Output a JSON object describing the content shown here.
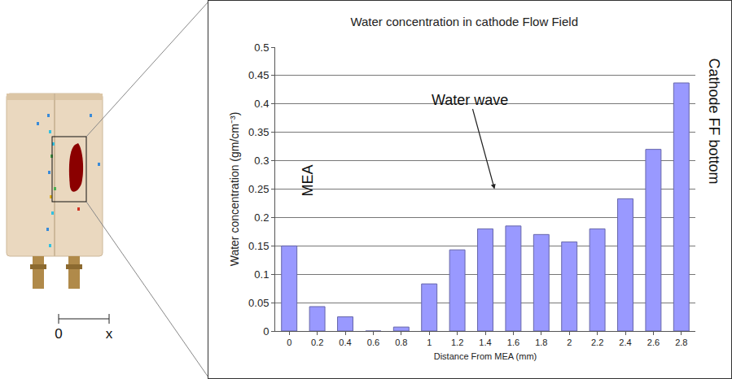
{
  "chart_data": {
    "type": "bar",
    "title": "Water concentration in cathode Flow Field",
    "x_label": "Distance From MEA (mm)",
    "y_label": "Water concentration (gm/cm⁻³)",
    "categories": [
      "0",
      "0.2",
      "0.4",
      "0.6",
      "0.8",
      "1",
      "1.2",
      "1.4",
      "1.6",
      "1.8",
      "2",
      "2.2",
      "2.4",
      "2.6",
      "2.8"
    ],
    "values": [
      0.15,
      0.043,
      0.025,
      0,
      0.007,
      0.083,
      0.143,
      0.18,
      0.185,
      0.17,
      0.157,
      0.18,
      0.233,
      0.32,
      0.437
    ],
    "color": "#9999ff",
    "ylim": [
      0,
      0.5
    ],
    "yticks": [
      0,
      0.05,
      0.1,
      0.15,
      0.2,
      0.25,
      0.3,
      0.35,
      0.4,
      0.45,
      0.5
    ],
    "grid": true,
    "annotations": [
      "Water wave",
      "MEA",
      "Cathode FF bottom"
    ]
  },
  "inset": {
    "scale_labels": [
      "0",
      "x"
    ]
  }
}
